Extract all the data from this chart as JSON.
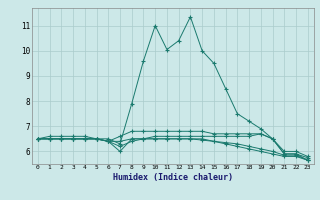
{
  "xlabel": "Humidex (Indice chaleur)",
  "ylabel": "",
  "bg_color": "#cce8e8",
  "line_color": "#1a7a6e",
  "grid_color": "#aacccc",
  "xlim": [
    -0.5,
    23.5
  ],
  "ylim": [
    5.5,
    11.7
  ],
  "yticks": [
    6,
    7,
    8,
    9,
    10,
    11
  ],
  "xticks": [
    0,
    1,
    2,
    3,
    4,
    5,
    6,
    7,
    8,
    9,
    10,
    11,
    12,
    13,
    14,
    15,
    16,
    17,
    18,
    19,
    20,
    21,
    22,
    23
  ],
  "series": [
    {
      "x": [
        0,
        1,
        2,
        3,
        4,
        5,
        6,
        7,
        8,
        9,
        10,
        11,
        12,
        13,
        14,
        15,
        16,
        17,
        18,
        19,
        20,
        21,
        22,
        23
      ],
      "y": [
        6.5,
        6.6,
        6.6,
        6.6,
        6.6,
        6.5,
        6.5,
        6.3,
        7.9,
        9.6,
        11.0,
        10.05,
        10.4,
        11.35,
        10.0,
        9.5,
        8.5,
        7.5,
        7.2,
        6.9,
        6.5,
        5.9,
        5.9,
        5.65
      ]
    },
    {
      "x": [
        0,
        1,
        2,
        3,
        4,
        5,
        6,
        7,
        8,
        9,
        10,
        11,
        12,
        13,
        14,
        15,
        16,
        17,
        18,
        19,
        20,
        21,
        22,
        23
      ],
      "y": [
        6.5,
        6.5,
        6.5,
        6.5,
        6.5,
        6.5,
        6.4,
        6.4,
        6.5,
        6.5,
        6.6,
        6.6,
        6.6,
        6.6,
        6.6,
        6.6,
        6.6,
        6.6,
        6.6,
        6.7,
        6.5,
        6.0,
        6.0,
        5.8
      ]
    },
    {
      "x": [
        0,
        1,
        2,
        3,
        4,
        5,
        6,
        7,
        8,
        9,
        10,
        11,
        12,
        13,
        14,
        15,
        16,
        17,
        18,
        19,
        20,
        21,
        22,
        23
      ],
      "y": [
        6.5,
        6.5,
        6.5,
        6.5,
        6.5,
        6.5,
        6.4,
        6.2,
        6.4,
        6.5,
        6.5,
        6.5,
        6.5,
        6.5,
        6.5,
        6.4,
        6.3,
        6.2,
        6.1,
        6.0,
        5.9,
        5.8,
        5.8,
        5.65
      ]
    },
    {
      "x": [
        0,
        1,
        2,
        3,
        4,
        5,
        6,
        7,
        8,
        9,
        10,
        11,
        12,
        13,
        14,
        15,
        16,
        17,
        18,
        19,
        20,
        21,
        22,
        23
      ],
      "y": [
        6.5,
        6.5,
        6.5,
        6.5,
        6.5,
        6.5,
        6.4,
        6.6,
        6.8,
        6.8,
        6.8,
        6.8,
        6.8,
        6.8,
        6.8,
        6.7,
        6.7,
        6.7,
        6.7,
        6.7,
        6.5,
        5.9,
        5.9,
        5.75
      ]
    },
    {
      "x": [
        0,
        1,
        2,
        3,
        4,
        5,
        6,
        7,
        8,
        9,
        10,
        11,
        12,
        13,
        14,
        15,
        16,
        17,
        18,
        19,
        20,
        21,
        22,
        23
      ],
      "y": [
        6.5,
        6.5,
        6.5,
        6.5,
        6.5,
        6.5,
        6.4,
        6.0,
        6.5,
        6.5,
        6.5,
        6.5,
        6.5,
        6.5,
        6.45,
        6.4,
        6.35,
        6.3,
        6.2,
        6.1,
        6.0,
        5.85,
        5.85,
        5.65
      ]
    }
  ]
}
